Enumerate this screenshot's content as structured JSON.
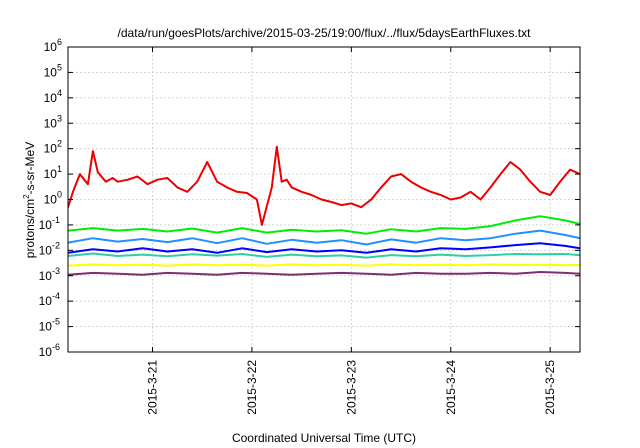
{
  "chart_data": {
    "type": "line",
    "title": "/data/run/goesPlots/archive/2015-03-25/19:00/flux/../flux/5daysEarthFluxes.txt",
    "xlabel": "Coordinated Universal Time (UTC)",
    "ylabel": {
      "pre": "protons/cm",
      "sup": "2",
      "post": "-s-sr-MeV"
    },
    "y_scale": "log",
    "ylim": [
      1e-06,
      1000000.0
    ],
    "xlim": [
      0,
      5.15
    ],
    "x_ticks": [
      {
        "x": 0.85,
        "label": "2015-3-21"
      },
      {
        "x": 1.85,
        "label": "2015-3-22"
      },
      {
        "x": 2.85,
        "label": "2015-3-23"
      },
      {
        "x": 3.85,
        "label": "2015-3-24"
      },
      {
        "x": 4.85,
        "label": "2015-3-25"
      }
    ],
    "y_ticks": [
      {
        "v": 1e-06,
        "base": "10",
        "exp": "-6"
      },
      {
        "v": 1e-05,
        "base": "10",
        "exp": "-5"
      },
      {
        "v": 0.0001,
        "base": "10",
        "exp": "-4"
      },
      {
        "v": 0.001,
        "base": "10",
        "exp": "-3"
      },
      {
        "v": 0.01,
        "base": "10",
        "exp": "-2"
      },
      {
        "v": 0.1,
        "base": "10",
        "exp": "-1"
      },
      {
        "v": 1,
        "base": "10",
        "exp": "0"
      },
      {
        "v": 10,
        "base": "10",
        "exp": "1"
      },
      {
        "v": 100,
        "base": "10",
        "exp": "2"
      },
      {
        "v": 1000,
        "base": "10",
        "exp": "3"
      },
      {
        "v": 10000,
        "base": "10",
        "exp": "4"
      },
      {
        "v": 100000,
        "base": "10",
        "exp": "5"
      },
      {
        "v": 1000000,
        "base": "10",
        "exp": "6"
      }
    ],
    "grid": true,
    "series": [
      {
        "color": "#7b2f6e",
        "x": [
          0,
          0.25,
          0.5,
          0.75,
          1.0,
          1.25,
          1.5,
          1.75,
          2.0,
          2.25,
          2.5,
          2.75,
          3.0,
          3.25,
          3.5,
          3.75,
          4.0,
          4.25,
          4.5,
          4.75,
          5.0,
          5.15
        ],
        "y": [
          0.0011,
          0.0013,
          0.0012,
          0.0011,
          0.0013,
          0.0012,
          0.0011,
          0.0013,
          0.0012,
          0.0011,
          0.0012,
          0.0013,
          0.0012,
          0.0011,
          0.0013,
          0.0012,
          0.0012,
          0.0013,
          0.0012,
          0.0014,
          0.0013,
          0.0012
        ]
      },
      {
        "color": "#ffff00",
        "x": [
          0,
          0.25,
          0.5,
          0.75,
          1.0,
          1.25,
          1.5,
          1.75,
          2.0,
          2.25,
          2.5,
          2.75,
          3.0,
          3.25,
          3.5,
          3.75,
          4.0,
          4.25,
          4.5,
          4.75,
          5.0,
          5.15
        ],
        "y": [
          0.0025,
          0.0028,
          0.0026,
          0.0027,
          0.0025,
          0.0028,
          0.0026,
          0.0027,
          0.0025,
          0.0028,
          0.0026,
          0.0027,
          0.0025,
          0.0028,
          0.0026,
          0.0027,
          0.0026,
          0.0028,
          0.0027,
          0.0027,
          0.0026,
          0.0027
        ]
      },
      {
        "color": "#2ecfa0",
        "x": [
          0,
          0.25,
          0.5,
          0.75,
          1.0,
          1.25,
          1.5,
          1.75,
          2.0,
          2.25,
          2.5,
          2.75,
          3.0,
          3.25,
          3.5,
          3.75,
          4.0,
          4.25,
          4.5,
          4.75,
          5.0,
          5.15
        ],
        "y": [
          0.006,
          0.0075,
          0.006,
          0.0068,
          0.0058,
          0.007,
          0.0062,
          0.0072,
          0.0055,
          0.0068,
          0.0058,
          0.0063,
          0.0052,
          0.0065,
          0.0058,
          0.0068,
          0.006,
          0.0065,
          0.0072,
          0.007,
          0.0072,
          0.0065
        ]
      },
      {
        "color": "#0000ff",
        "x": [
          0,
          0.25,
          0.5,
          0.75,
          1.0,
          1.25,
          1.5,
          1.75,
          2.0,
          2.25,
          2.5,
          2.75,
          3.0,
          3.25,
          3.5,
          3.75,
          4.0,
          4.25,
          4.5,
          4.75,
          5.0,
          5.15
        ],
        "y": [
          0.008,
          0.011,
          0.009,
          0.012,
          0.009,
          0.011,
          0.008,
          0.012,
          0.0085,
          0.011,
          0.009,
          0.01,
          0.008,
          0.011,
          0.009,
          0.012,
          0.011,
          0.013,
          0.016,
          0.019,
          0.015,
          0.012
        ]
      },
      {
        "color": "#1e90ff",
        "x": [
          0,
          0.25,
          0.5,
          0.75,
          1.0,
          1.25,
          1.5,
          1.75,
          2.0,
          2.25,
          2.5,
          2.75,
          3.0,
          3.25,
          3.5,
          3.75,
          4.0,
          4.25,
          4.5,
          4.75,
          5.0,
          5.15
        ],
        "y": [
          0.02,
          0.03,
          0.022,
          0.028,
          0.021,
          0.03,
          0.019,
          0.03,
          0.018,
          0.026,
          0.02,
          0.025,
          0.017,
          0.027,
          0.02,
          0.03,
          0.025,
          0.03,
          0.045,
          0.06,
          0.04,
          0.03
        ]
      },
      {
        "color": "#00ee00",
        "x": [
          0,
          0.25,
          0.5,
          0.75,
          1.0,
          1.25,
          1.5,
          1.75,
          2.0,
          2.25,
          2.5,
          2.75,
          3.0,
          3.25,
          3.5,
          3.75,
          4.0,
          4.25,
          4.5,
          4.75,
          5.0,
          5.15
        ],
        "y": [
          0.06,
          0.075,
          0.06,
          0.07,
          0.055,
          0.072,
          0.05,
          0.075,
          0.05,
          0.065,
          0.055,
          0.062,
          0.045,
          0.068,
          0.055,
          0.075,
          0.07,
          0.09,
          0.15,
          0.22,
          0.15,
          0.11
        ]
      },
      {
        "color": "#ee0000",
        "x": [
          0,
          0.05,
          0.12,
          0.2,
          0.25,
          0.3,
          0.38,
          0.45,
          0.5,
          0.6,
          0.7,
          0.8,
          0.9,
          1.0,
          1.1,
          1.2,
          1.3,
          1.4,
          1.5,
          1.6,
          1.7,
          1.8,
          1.9,
          1.95,
          2.05,
          2.1,
          2.15,
          2.2,
          2.25,
          2.35,
          2.45,
          2.55,
          2.65,
          2.75,
          2.85,
          2.95,
          3.05,
          3.15,
          3.25,
          3.35,
          3.45,
          3.55,
          3.65,
          3.75,
          3.85,
          3.95,
          4.05,
          4.15,
          4.25,
          4.35,
          4.45,
          4.55,
          4.65,
          4.75,
          4.85,
          4.95,
          5.05,
          5.15
        ],
        "y": [
          0.5,
          2,
          10,
          4,
          80,
          12,
          5,
          7,
          5,
          6,
          8,
          4,
          6,
          7,
          3,
          2,
          5,
          30,
          5,
          3,
          2,
          1.8,
          1,
          0.1,
          3,
          120,
          5,
          6,
          3,
          2,
          1.5,
          1,
          0.8,
          0.6,
          0.7,
          0.5,
          1,
          3,
          8,
          10,
          5,
          3,
          2,
          1.5,
          1,
          1.2,
          2,
          1,
          3,
          10,
          30,
          15,
          5,
          2,
          1.5,
          5,
          15,
          10
        ]
      }
    ]
  }
}
